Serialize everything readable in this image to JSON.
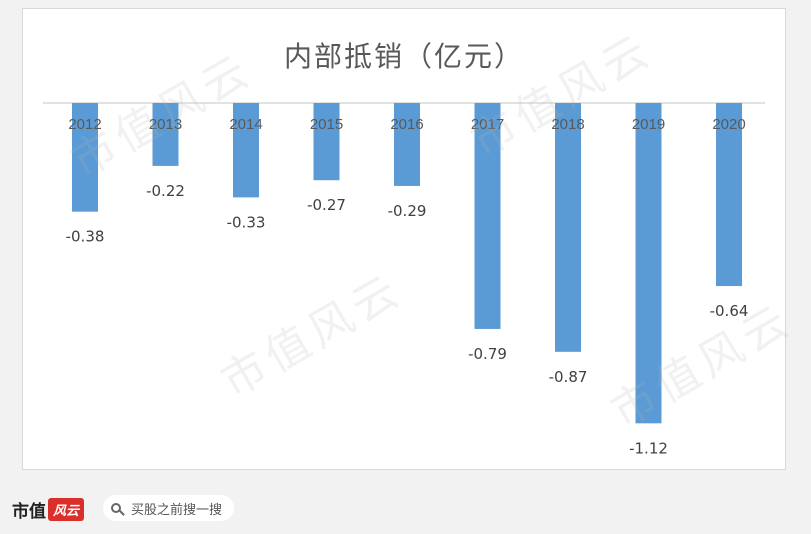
{
  "chart_data": {
    "type": "bar",
    "title": "内部抵销（亿元）",
    "categories": [
      "2012",
      "2013",
      "2014",
      "2015",
      "2016",
      "2017",
      "2018",
      "2019",
      "2020"
    ],
    "values": [
      -0.38,
      -0.22,
      -0.33,
      -0.27,
      -0.29,
      -0.79,
      -0.87,
      -1.12,
      -0.64
    ],
    "value_labels": [
      "-0.38",
      "-0.22",
      "-0.33",
      "-0.27",
      "-0.29",
      "-0.79",
      "-0.87",
      "-1.12",
      "-0.64"
    ],
    "bar_color": "#5b9bd5",
    "xlabel": "",
    "ylabel": "",
    "ylim": [
      -1.2,
      0
    ],
    "x_axis_position": "top",
    "grid": false,
    "legend": "none"
  },
  "watermark": "市值风云",
  "footer": {
    "brand_main": "市值",
    "brand_accent": "风云",
    "search_placeholder": "买股之前搜一搜"
  }
}
